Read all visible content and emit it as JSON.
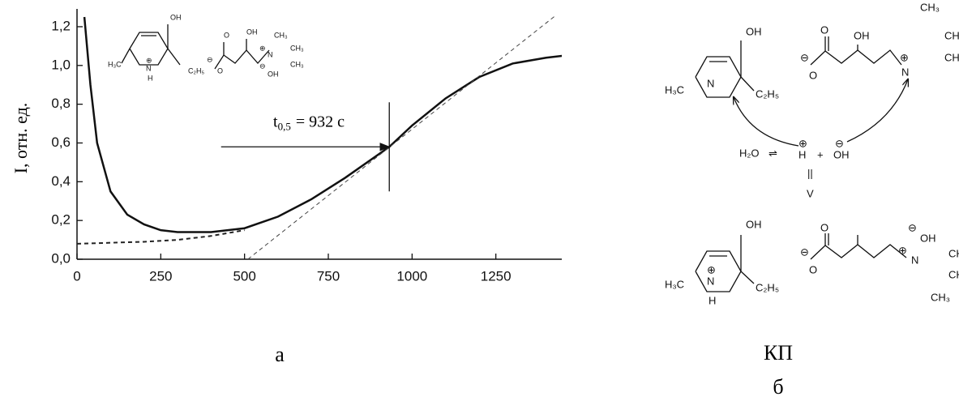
{
  "chart_data": {
    "type": "line",
    "y_label": "I, отн. ед.",
    "xlim": [
      0,
      1500
    ],
    "ylim": [
      0,
      1.25
    ],
    "xticks": [
      0,
      250,
      500,
      750,
      1000,
      1250,
      1500
    ],
    "yticks": [
      {
        "value": 0,
        "label": "0,0"
      },
      {
        "value": 0.2,
        "label": "0,2"
      },
      {
        "value": 0.4,
        "label": "0,4"
      },
      {
        "value": 0.6,
        "label": "0,6"
      },
      {
        "value": 0.8,
        "label": "0,8"
      },
      {
        "value": 1.0,
        "label": "1,0"
      },
      {
        "value": 1.2,
        "label": "1,2"
      }
    ],
    "series": [
      {
        "color": "#111111",
        "dash": false,
        "width": 2.5,
        "x": [
          22,
          40,
          60,
          100,
          150,
          200,
          250,
          300,
          400,
          500,
          600,
          700,
          800,
          932,
          1000,
          1100,
          1200,
          1300,
          1400,
          1500
        ],
        "values": [
          1.25,
          0.9,
          0.6,
          0.35,
          0.23,
          0.18,
          0.15,
          0.14,
          0.14,
          0.16,
          0.22,
          0.31,
          0.42,
          0.58,
          0.69,
          0.83,
          0.94,
          1.01,
          1.04,
          1.06
        ]
      },
      {
        "color": "#222222",
        "dash": true,
        "width": 2,
        "x": [
          0,
          100,
          200,
          300,
          400,
          500
        ],
        "values": [
          0.08,
          0.085,
          0.09,
          0.1,
          0.12,
          0.15
        ]
      },
      {
        "color": "#444444",
        "dash": true,
        "width": 1,
        "x": [
          510,
          1430
        ],
        "values": [
          0,
          1.26
        ]
      }
    ],
    "marker_x": 932,
    "marker_y": 0.58,
    "arrow_from_x": 430,
    "annotation": {
      "base": "t",
      "sub": "0,5",
      "rest": "= 932 c"
    },
    "panel_label": "а"
  },
  "inset_labels": [
    "OH",
    "H₃C",
    "N",
    "⊕",
    "H",
    "C₂H₅",
    "⊖",
    "O",
    "O",
    "OH",
    "⊕",
    "N",
    "CH₃",
    "CH₃",
    "CH₃",
    "⊖",
    "OH"
  ],
  "scheme_labels": [
    "OH",
    "H₃C",
    "N",
    "C₂H₅",
    "⊖",
    "O",
    "O",
    "OH",
    "⊕",
    "N",
    "CH₃",
    "CH₃",
    "CH₃",
    "H₂O",
    "⇌",
    "⊕",
    "H",
    "+",
    "⊖",
    "OH",
    "||",
    "V",
    "OH",
    "H₃C",
    "⊕",
    "N",
    "H",
    "C₂H₅",
    "⊖",
    "O",
    "O",
    "⊖",
    "OH",
    "⊕",
    "N",
    "CH₃",
    "CH₃",
    "CH₃"
  ],
  "scheme_caption": "КП",
  "panel_label_b": "б"
}
